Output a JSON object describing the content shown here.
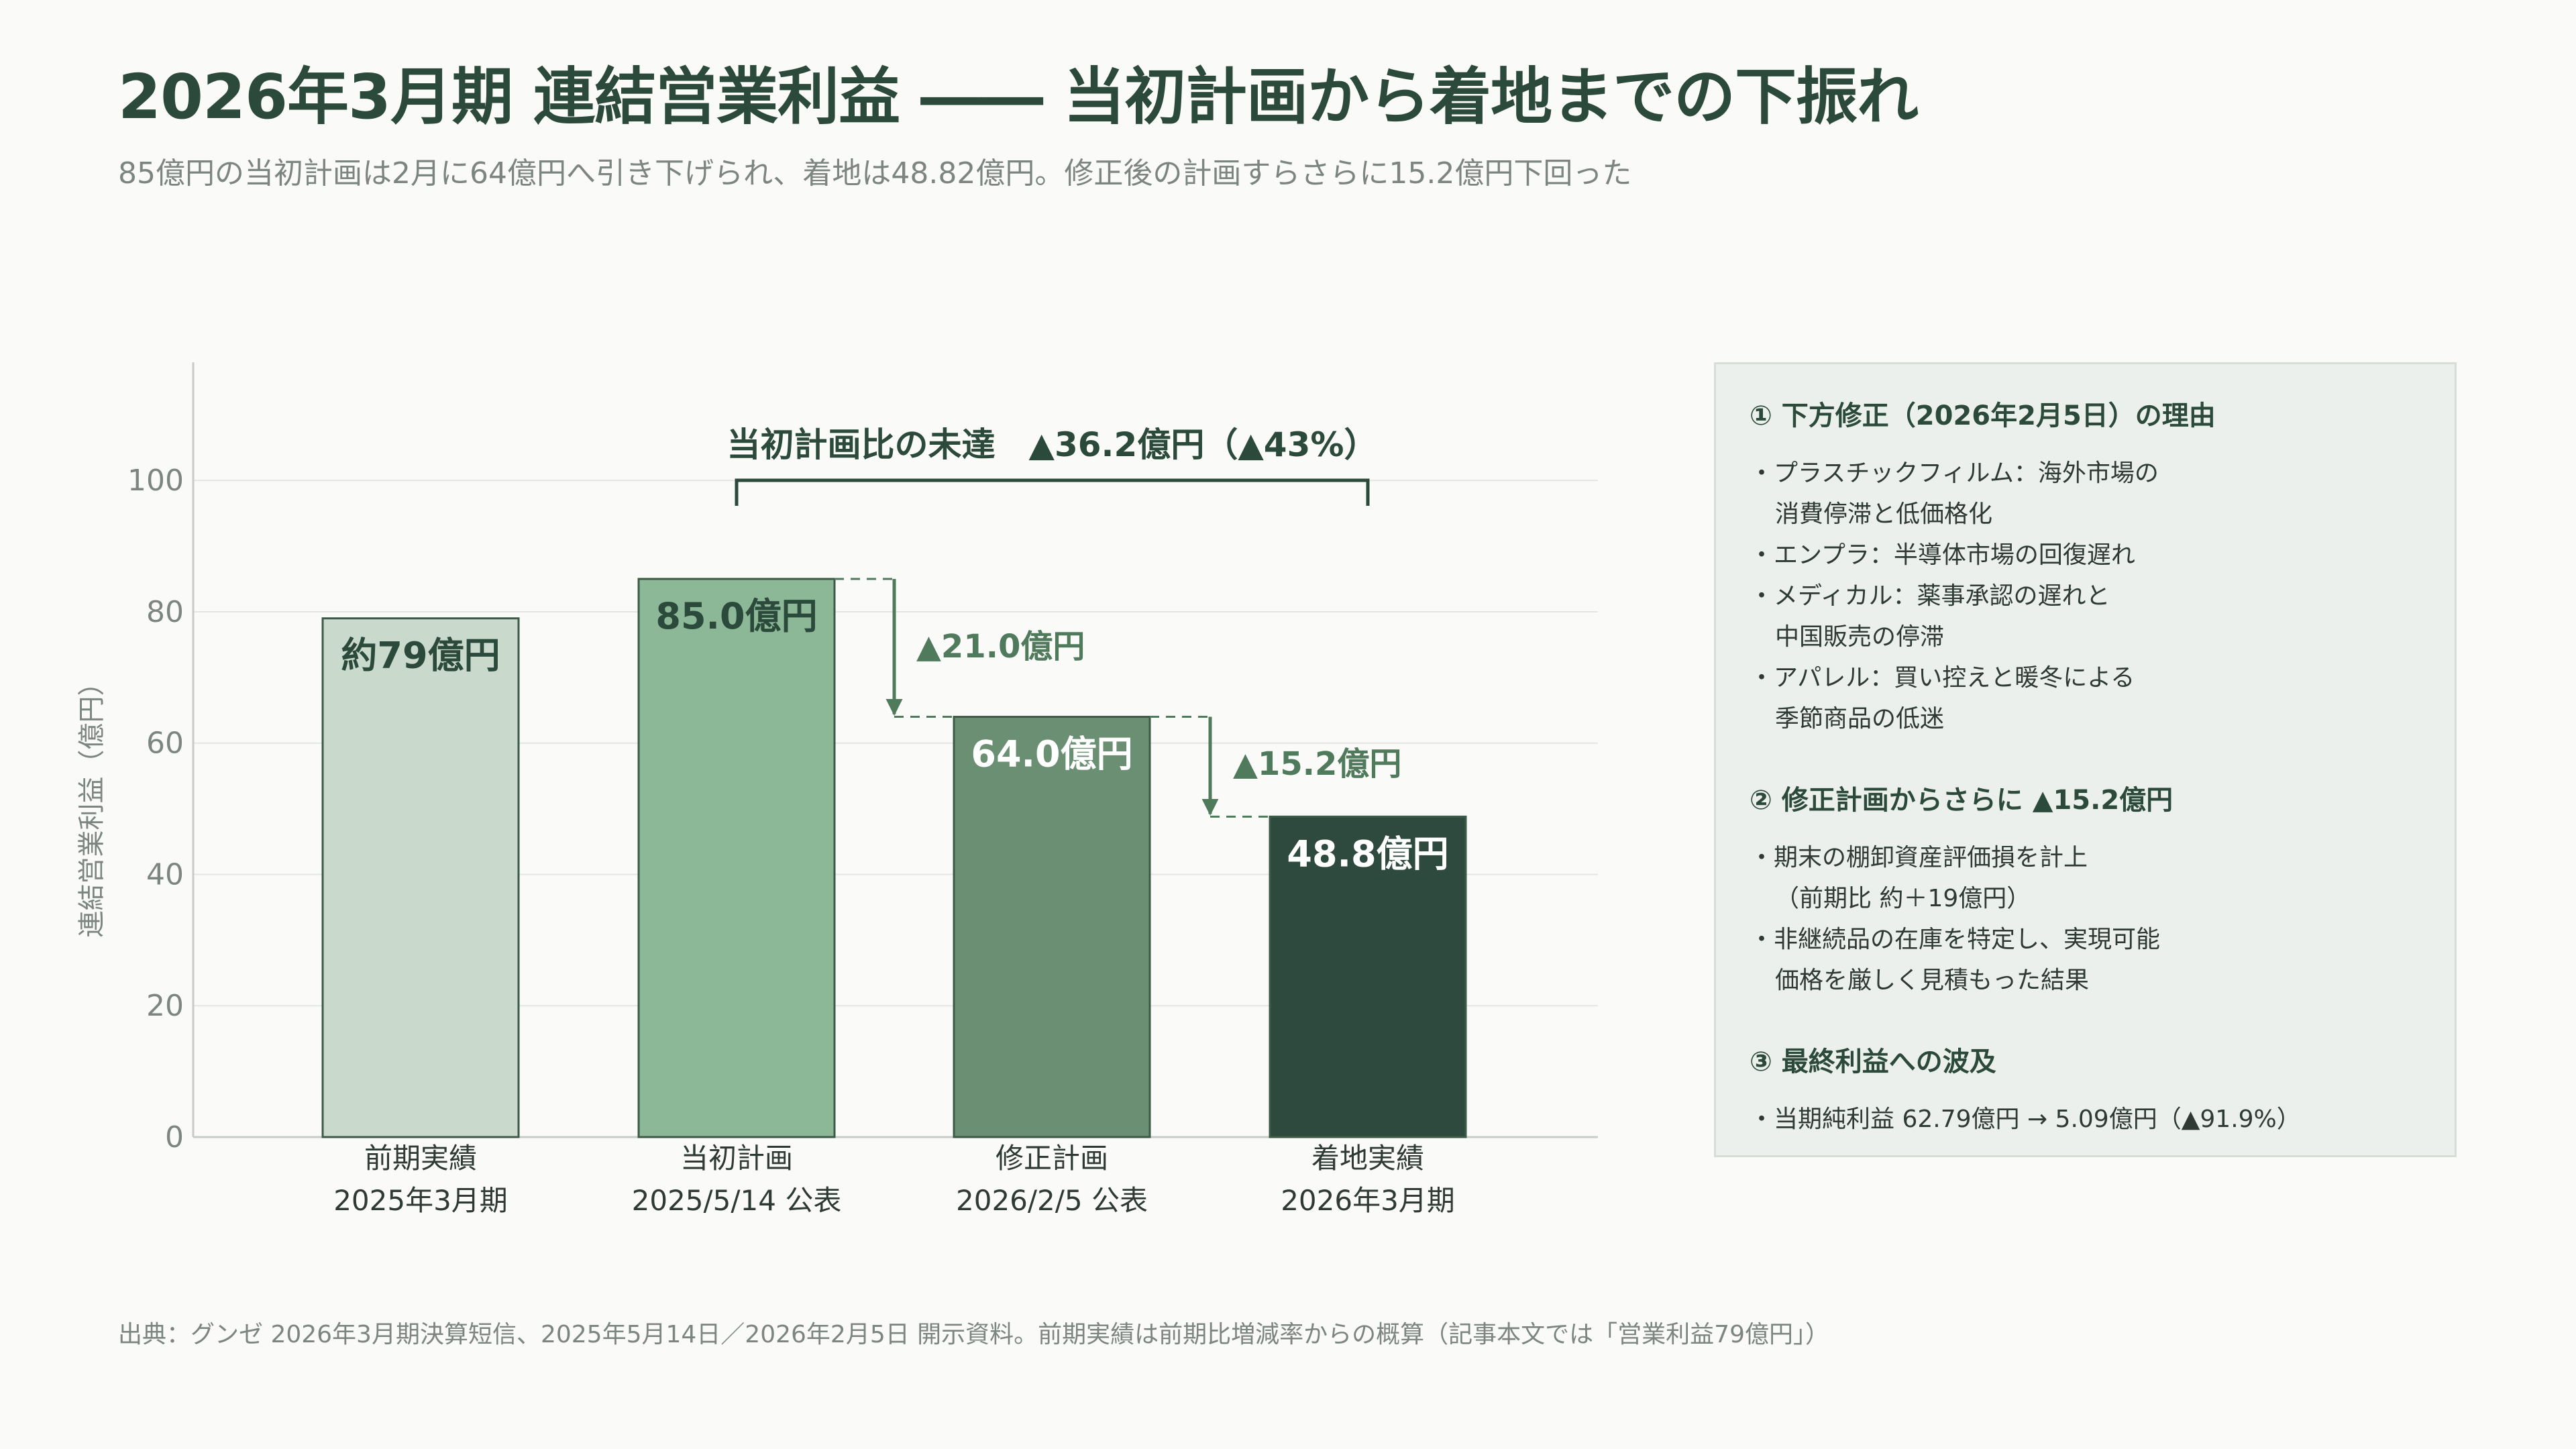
{
  "header": {
    "title": "2026年3月期 連結営業利益 ―― 当初計画から着地までの下振れ",
    "subtitle": "85億円の当初計画は2月に64億円へ引き下げられ、着地は48.82億円。修正後の計画すらさらに15.2億円下回った"
  },
  "chart_data": {
    "type": "bar",
    "categories": [
      [
        "前期実績",
        "2025年3月期"
      ],
      [
        "当初計画",
        "2025/5/14 公表"
      ],
      [
        "修正計画",
        "2026/2/5 公表"
      ],
      [
        "着地実績",
        "2026年3月期"
      ]
    ],
    "values": [
      79,
      85.0,
      64.0,
      48.8
    ],
    "data_labels": [
      "約79億円",
      "85.0億円",
      "64.0億円",
      "48.8億円"
    ],
    "bar_colors": [
      "#c9d9cc",
      "#8cb898",
      "#6a8f72",
      "#2e4a3e"
    ],
    "label_colors": [
      "#2c4a3c",
      "#2c4a3c",
      "#ffffff",
      "#ffffff"
    ],
    "ylabel": "連結営業利益（億円）",
    "ylim": [
      0,
      118
    ],
    "yticks": [
      0,
      20,
      40,
      60,
      80,
      100
    ],
    "grid": true,
    "annotations": {
      "bracket_label": "当初計画比の未達　▲36.2億円（▲43%）",
      "drop1_label": "▲21.0億円",
      "drop2_label": "▲15.2億円"
    },
    "colors": {
      "axis": "#c8ccc9",
      "grid": "#e4e6e4",
      "tick_text": "#7c8580",
      "annotation": "#4f7a5c",
      "dark": "#2c4a3c"
    }
  },
  "panel": {
    "sections": [
      {
        "title": "① 下方修正（2026年2月5日）の理由",
        "items": [
          [
            "・プラスチックフィルム：海外市場の",
            "消費停滞と低価格化"
          ],
          [
            "・エンプラ：半導体市場の回復遅れ"
          ],
          [
            "・メディカル：薬事承認の遅れと",
            "中国販売の停滞"
          ],
          [
            "・アパレル：買い控えと暖冬による",
            "季節商品の低迷"
          ]
        ]
      },
      {
        "title": "② 修正計画からさらに ▲15.2億円",
        "items": [
          [
            "・期末の棚卸資産評価損を計上",
            "（前期比 約＋19億円）"
          ],
          [
            "・非継続品の在庫を特定し、実現可能",
            "価格を厳しく見積もった結果"
          ]
        ]
      },
      {
        "title": "③ 最終利益への波及",
        "items": [
          [
            "・当期純利益 62.79億円 → 5.09億円（▲91.9%）"
          ]
        ]
      }
    ]
  },
  "footer": {
    "source": "出典：グンゼ 2026年3月期決算短信、2025年5月14日／2026年2月5日 開示資料。前期実績は前期比増減率からの概算（記事本文では「営業利益79億円」）"
  }
}
